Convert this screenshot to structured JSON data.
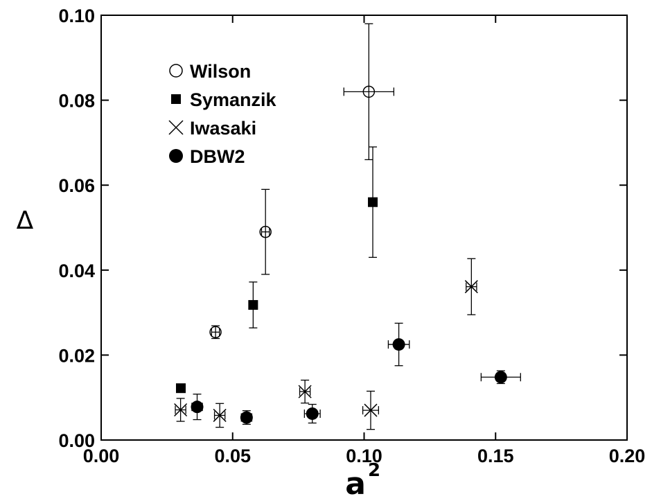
{
  "chart_data": {
    "type": "scatter",
    "xlabel": "a",
    "xlabel_superscript": "2",
    "ylabel": "Δ",
    "xlim": [
      0.0,
      0.2
    ],
    "ylim": [
      0.0,
      0.1
    ],
    "x_ticks": [
      "0.00",
      "0.05",
      "0.10",
      "0.15",
      "0.20"
    ],
    "y_ticks": [
      "0.00",
      "0.02",
      "0.04",
      "0.06",
      "0.08",
      "0.10"
    ],
    "x_tick_values": [
      0.0,
      0.05,
      0.1,
      0.15,
      0.2
    ],
    "y_tick_values": [
      0.0,
      0.02,
      0.04,
      0.06,
      0.08,
      0.1
    ],
    "grid": false,
    "legend_position": "top-left",
    "series": [
      {
        "name": "Wilson",
        "marker": "open-circle",
        "points": [
          {
            "x": 0.0435,
            "y": 0.0254,
            "xerr": 0.0015,
            "yerr": 0.0015
          },
          {
            "x": 0.0625,
            "y": 0.049,
            "xerr": 0.0015,
            "yerr": 0.01
          },
          {
            "x": 0.1018,
            "y": 0.082,
            "xerr": 0.0095,
            "yerr": 0.016
          }
        ]
      },
      {
        "name": "Symanzik",
        "marker": "filled-square",
        "points": [
          {
            "x": 0.0303,
            "y": 0.0122,
            "xerr": 0.001,
            "yerr": 0.0008
          },
          {
            "x": 0.0578,
            "y": 0.0318,
            "xerr": 0.001,
            "yerr": 0.0054
          },
          {
            "x": 0.1033,
            "y": 0.056,
            "xerr": 0.001,
            "yerr": 0.013
          }
        ]
      },
      {
        "name": "Iwasaki",
        "marker": "cross",
        "points": [
          {
            "x": 0.0302,
            "y": 0.0071,
            "xerr": 0.002,
            "yerr": 0.0027
          },
          {
            "x": 0.0451,
            "y": 0.0058,
            "xerr": 0.002,
            "yerr": 0.0028
          },
          {
            "x": 0.0775,
            "y": 0.0114,
            "xerr": 0.002,
            "yerr": 0.0027
          },
          {
            "x": 0.1025,
            "y": 0.007,
            "xerr": 0.003,
            "yerr": 0.0045
          },
          {
            "x": 0.1408,
            "y": 0.0361,
            "xerr": 0.002,
            "yerr": 0.0066
          }
        ]
      },
      {
        "name": "DBW2",
        "marker": "filled-circle",
        "points": [
          {
            "x": 0.0365,
            "y": 0.0078,
            "xerr": 0.002,
            "yerr": 0.003
          },
          {
            "x": 0.0553,
            "y": 0.0053,
            "xerr": 0.002,
            "yerr": 0.0016
          },
          {
            "x": 0.0803,
            "y": 0.0062,
            "xerr": 0.003,
            "yerr": 0.0022
          },
          {
            "x": 0.1132,
            "y": 0.0225,
            "xerr": 0.004,
            "yerr": 0.005
          },
          {
            "x": 0.152,
            "y": 0.0148,
            "xerr": 0.0075,
            "yerr": 0.0015
          }
        ]
      }
    ]
  }
}
